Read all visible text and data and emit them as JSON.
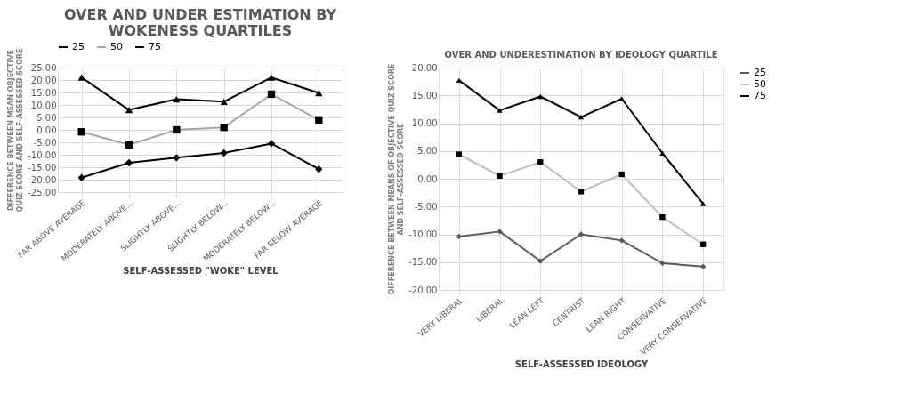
{
  "chart_data": [
    {
      "type": "line",
      "title": [
        "OVER AND UNDER ESTIMATION BY",
        "WOKENESS QUARTILES"
      ],
      "xlabel": "SELF-ASSESSED \"WOKE\" LEVEL",
      "ylabel": [
        "DIFFERENCE BETWEEN MEAN OBJECTIVE",
        "QUIZ SCORE AND SELF-ASSESSED SCORE"
      ],
      "categories": [
        "FAR ABOVE AVERAGE",
        "MODERATELY ABOVE...",
        "SLIGHTLY ABOVE...",
        "SLIGHTLY BELOW...",
        "MODERATELY BELOW...",
        "FAR BELOW AVERAGE"
      ],
      "series": [
        {
          "name": "25",
          "color": "#000000",
          "marker": "diamond",
          "values": [
            -19.2,
            -13.2,
            -11.2,
            -9.3,
            -5.5,
            -15.8
          ]
        },
        {
          "name": "50",
          "color": "#a6a6a6",
          "marker": "square",
          "values": [
            -0.8,
            -6.0,
            0.0,
            1.0,
            14.3,
            4.0
          ]
        },
        {
          "name": "75",
          "color": "#000000",
          "marker": "triangle",
          "values": [
            21.0,
            8.0,
            12.3,
            11.3,
            21.0,
            14.8
          ]
        }
      ],
      "ylim": [
        -25,
        25
      ],
      "yticks": [
        {
          "value": -25,
          "label": "-25.00"
        },
        {
          "value": -20,
          "label": "-20.00"
        },
        {
          "value": -15,
          "label": "-15.00"
        },
        {
          "value": -10,
          "label": "-10.00"
        },
        {
          "value": -5,
          "label": "-5.00"
        },
        {
          "value": 0,
          "label": "0.00"
        },
        {
          "value": 5,
          "label": "5.00"
        },
        {
          "value": 10,
          "label": "10.00"
        },
        {
          "value": 15,
          "label": "15.00"
        },
        {
          "value": 20,
          "label": "20.00"
        },
        {
          "value": 25,
          "label": "25.00"
        }
      ],
      "grid": true,
      "legend": "top"
    },
    {
      "type": "line",
      "title": "OVER AND UNDERESTIMATION BY IDEOLOGY QUARTILE",
      "xlabel": "SELF-ASSESSED IDEOLOGY",
      "ylabel": [
        "DIFFERENCE BETWEEN MEANS OF OBJECTIVE QUIZ SCORE",
        "AND SELF-ASSESSED SCORE"
      ],
      "categories": [
        "VERY LIBERAL",
        "LIBERAL",
        "LEAN LEFT",
        "CENTRIST",
        "LEAN RIGHT",
        "CONSERVATIVE",
        "VERY CONSERVATIVE"
      ],
      "series": [
        {
          "name": "25",
          "color": "#595959",
          "marker": "diamond",
          "values": [
            -10.4,
            -9.5,
            -14.8,
            -10.0,
            -11.1,
            -15.2,
            -15.8
          ]
        },
        {
          "name": "50",
          "color": "#bfbfbf",
          "marker": "square",
          "values": [
            4.4,
            0.5,
            3.0,
            -2.3,
            0.8,
            -6.9,
            -11.8
          ]
        },
        {
          "name": "75",
          "color": "#000000",
          "marker": "triangle",
          "values": [
            17.7,
            12.3,
            14.8,
            11.1,
            14.4,
            4.6,
            -4.5
          ]
        }
      ],
      "ylim": [
        -20,
        20
      ],
      "yticks": [
        {
          "value": -20,
          "label": "-20.00"
        },
        {
          "value": -15,
          "label": "-15.00"
        },
        {
          "value": -10,
          "label": "-10.00"
        },
        {
          "value": -5,
          "label": "-5.00"
        },
        {
          "value": 0,
          "label": "0.00"
        },
        {
          "value": 5,
          "label": "5.00"
        },
        {
          "value": 10,
          "label": "10.00"
        },
        {
          "value": 15,
          "label": "15.00"
        },
        {
          "value": 20,
          "label": "20.00"
        }
      ],
      "grid": true,
      "legend": "right"
    }
  ]
}
